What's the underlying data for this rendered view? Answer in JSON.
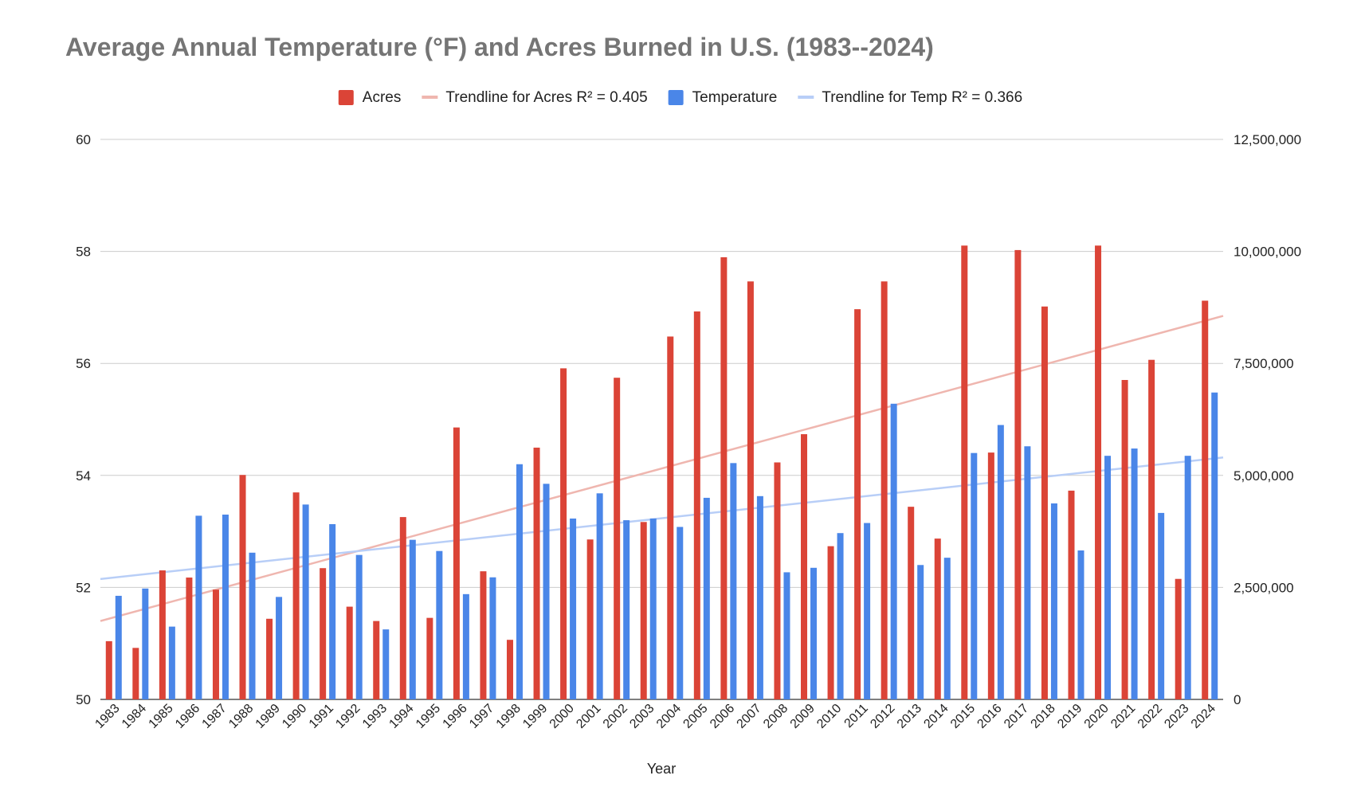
{
  "chart_data": {
    "type": "bar",
    "title": "Average Annual Temperature (°F) and Acres Burned in U.S. (1983--2024)",
    "xlabel": "Year",
    "ylabel_left": "",
    "ylabel_right": "",
    "categories": [
      "1983",
      "1984",
      "1985",
      "1986",
      "1987",
      "1988",
      "1989",
      "1990",
      "1991",
      "1992",
      "1993",
      "1994",
      "1995",
      "1996",
      "1997",
      "1998",
      "1999",
      "2000",
      "2001",
      "2002",
      "2003",
      "2004",
      "2005",
      "2006",
      "2007",
      "2008",
      "2009",
      "2010",
      "2011",
      "2012",
      "2013",
      "2014",
      "2015",
      "2016",
      "2017",
      "2018",
      "2019",
      "2020",
      "2021",
      "2022",
      "2023",
      "2024"
    ],
    "ylim_left": [
      50,
      60
    ],
    "yticks_left": [
      50,
      52,
      54,
      56,
      58,
      60
    ],
    "ytick_labels_left": [
      "50",
      "52",
      "54",
      "56",
      "58",
      "60"
    ],
    "ylim_right": [
      0,
      12500000
    ],
    "yticks_right": [
      0,
      2500000,
      5000000,
      7500000,
      10000000,
      12500000
    ],
    "ytick_labels_right": [
      "0",
      "2,500,000",
      "5,000,000",
      "7,500,000",
      "10,000,000",
      "12,500,000"
    ],
    "grid": true,
    "legend_position": "top",
    "series": [
      {
        "name": "Acres",
        "axis": "right",
        "color": "#db4437",
        "values": [
          1300000,
          1150000,
          2880000,
          2720000,
          2450000,
          5010000,
          1800000,
          4620000,
          2930000,
          2070000,
          1750000,
          4070000,
          1820000,
          6070000,
          2860000,
          1330000,
          5620000,
          7390000,
          3570000,
          7180000,
          3960000,
          8100000,
          8660000,
          9870000,
          9330000,
          5290000,
          5920000,
          3420000,
          8710000,
          9330000,
          4300000,
          3590000,
          10130000,
          5510000,
          10030000,
          8770000,
          4660000,
          10130000,
          7130000,
          7580000,
          2690000,
          8900000
        ]
      },
      {
        "name": "Temperature",
        "axis": "left",
        "color": "#4a86e8",
        "values": [
          51.85,
          51.98,
          51.3,
          53.28,
          53.3,
          52.62,
          51.83,
          53.48,
          53.13,
          52.58,
          51.25,
          52.85,
          52.65,
          51.88,
          52.18,
          54.2,
          53.85,
          53.23,
          53.68,
          53.2,
          53.23,
          53.08,
          53.6,
          54.22,
          53.63,
          52.27,
          52.35,
          52.97,
          53.15,
          55.28,
          52.4,
          52.53,
          54.4,
          54.9,
          54.52,
          53.5,
          52.66,
          54.35,
          54.48,
          53.33,
          54.35,
          55.48
        ]
      }
    ],
    "trendlines": [
      {
        "name": "Trendline for Acres R² = 0.405",
        "axis": "right",
        "color": "#efb6af",
        "start": 1750000,
        "end": 8560000
      },
      {
        "name": "Trendline for Temp R² = 0.366",
        "axis": "left",
        "color": "#b8cef7",
        "start": 52.15,
        "end": 54.32
      }
    ],
    "legend": [
      {
        "label": "Acres",
        "color": "#db4437",
        "kind": "box"
      },
      {
        "label": "Trendline for Acres R² = 0.405",
        "color": "#efb6af",
        "kind": "line"
      },
      {
        "label": "Temperature",
        "color": "#4a86e8",
        "kind": "box"
      },
      {
        "label": "Trendline for Temp R² = 0.366",
        "color": "#b8cef7",
        "kind": "line"
      }
    ]
  }
}
